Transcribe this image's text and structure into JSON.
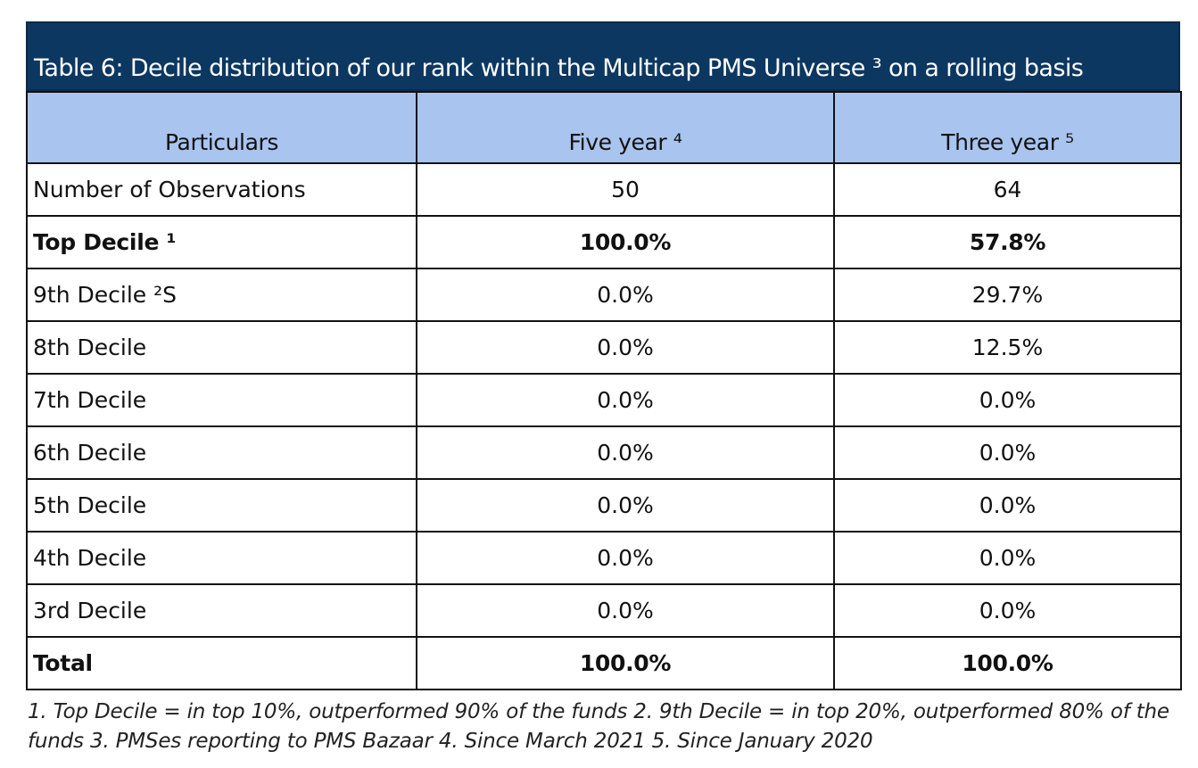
{
  "title": "Table 6: Decile distribution of our rank within the Multicap PMS Universe ³ on a rolling basis",
  "headers": [
    "Particulars",
    "Five year ⁴",
    "Three year ⁵"
  ],
  "rows": [
    {
      "label": "Number of Observations",
      "five_year": "50",
      "three_year": "64",
      "bold": false
    },
    {
      "label": "Top Decile ¹",
      "five_year": "100.0%",
      "three_year": "57.8%",
      "bold": true
    },
    {
      "label": "9th Decile ²S",
      "five_year": "0.0%",
      "three_year": "29.7%",
      "bold": false
    },
    {
      "label": "8th Decile",
      "five_year": "0.0%",
      "three_year": "12.5%",
      "bold": false
    },
    {
      "label": "7th Decile",
      "five_year": "0.0%",
      "three_year": "0.0%",
      "bold": false
    },
    {
      "label": "6th Decile",
      "five_year": "0.0%",
      "three_year": "0.0%",
      "bold": false
    },
    {
      "label": "5th Decile",
      "five_year": "0.0%",
      "three_year": "0.0%",
      "bold": false
    },
    {
      "label": "4th Decile",
      "five_year": "0.0%",
      "three_year": "0.0%",
      "bold": false
    },
    {
      "label": "3rd Decile",
      "five_year": "0.0%",
      "three_year": "0.0%",
      "bold": false
    },
    {
      "label": "Total",
      "five_year": "100.0%",
      "three_year": "100.0%",
      "bold": true
    }
  ],
  "footnote": "1. Top Decile = in top 10%,  outperformed 90% of the funds 2. 9th Decile = in top 20%, outperformed 80% of the funds 3. PMSes reporting to PMS Bazaar 4. Since March 2021 5. Since January 2020",
  "colors": {
    "title_bg": "#0c3761",
    "header_bg": "#a9c4ee",
    "border": "#111111"
  }
}
